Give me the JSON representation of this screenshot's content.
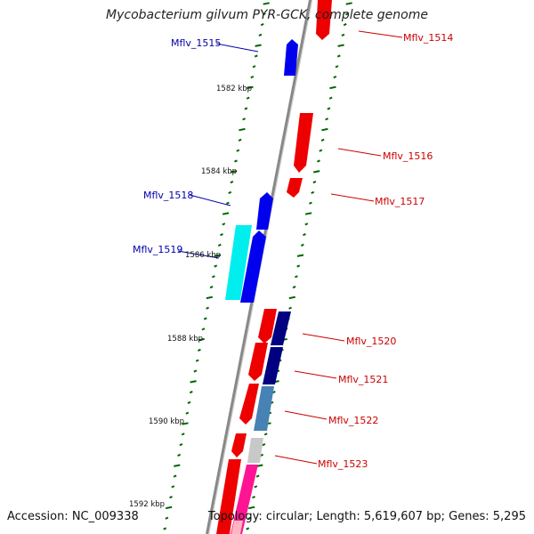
{
  "title": "Mycobacterium gilvum PYR-GCK, complete genome",
  "footer": {
    "accession": "Accession: NC_009338",
    "summary": "Topology: circular; Length: 5,619,607 bp; Genes: 5,295"
  },
  "colors": {
    "forward_gene": "#ee0000",
    "reverse_gene": "#0000ee",
    "tick": "#006600",
    "backbone": "#888888",
    "forward_label": "#cc0000",
    "reverse_label": "#0000aa"
  },
  "scale_labels": [
    "1582 kbp",
    "1584 kbp",
    "1586 kbp",
    "1588 kbp",
    "1590 kbp",
    "1592 kbp"
  ],
  "genes": [
    {
      "name": "Mflv_1514",
      "strand": "forward"
    },
    {
      "name": "Mflv_1515",
      "strand": "reverse"
    },
    {
      "name": "Mflv_1516",
      "strand": "forward"
    },
    {
      "name": "Mflv_1517",
      "strand": "forward"
    },
    {
      "name": "Mflv_1518",
      "strand": "reverse"
    },
    {
      "name": "Mflv_1519",
      "strand": "reverse"
    },
    {
      "name": "Mflv_1520",
      "strand": "forward"
    },
    {
      "name": "Mflv_1521",
      "strand": "forward"
    },
    {
      "name": "Mflv_1522",
      "strand": "forward"
    },
    {
      "name": "Mflv_1523",
      "strand": "forward"
    }
  ]
}
